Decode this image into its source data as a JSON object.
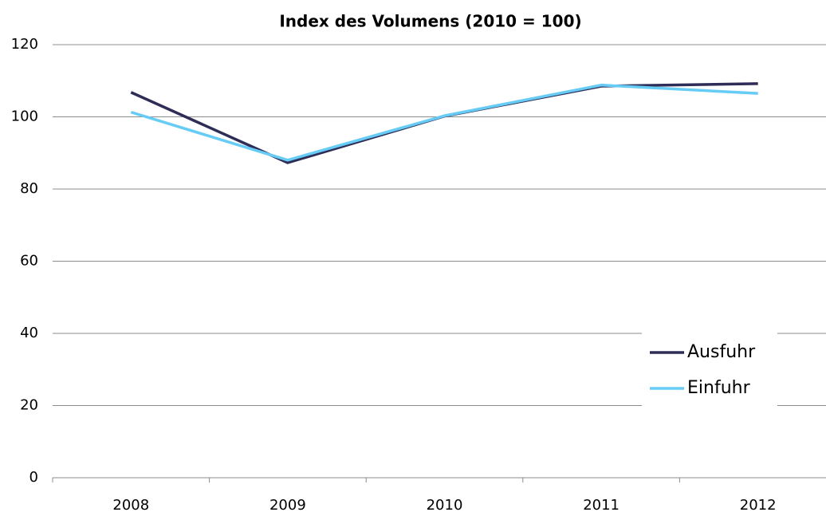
{
  "chart_data": {
    "type": "line",
    "title": "Index des Volumens (2010 = 100)",
    "categories": [
      "2008",
      "2009",
      "2010",
      "2011",
      "2012"
    ],
    "series": [
      {
        "name": "Ausfuhr",
        "color": "#2e2d57",
        "values": [
          106.8,
          87.3,
          100.2,
          108.5,
          109.2
        ]
      },
      {
        "name": "Einfuhr",
        "color": "#66ccf5",
        "values": [
          101.3,
          88.0,
          100.3,
          108.8,
          106.5
        ]
      }
    ],
    "ylim": [
      0,
      120
    ],
    "yticks": [
      0,
      20,
      40,
      60,
      80,
      100,
      120
    ],
    "grid": true,
    "legend": "right"
  }
}
